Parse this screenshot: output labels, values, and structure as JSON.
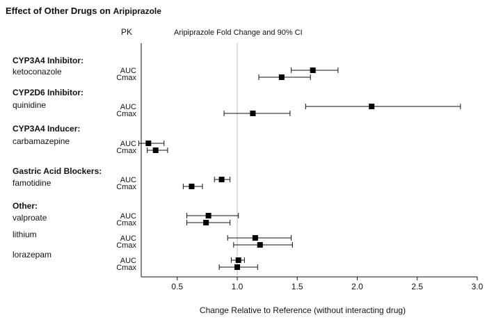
{
  "title": "Effect of Other Drugs on",
  "title_drug": "Aripiprazole",
  "pk_header": "PK",
  "panel_header": "Aripiprazole Fold Change and 90% CI",
  "chart_data": {
    "type": "forest",
    "xlabel": "Change Relative to Reference (without interacting drug)",
    "xlim": [
      0.2,
      3.0
    ],
    "xticks": [
      "0.5",
      "1.0",
      "1.5",
      "2.0",
      "2.5",
      "3.0"
    ],
    "reference_line": 1.0,
    "groups": [
      {
        "category": "CYP3A4 Inhibitor:",
        "drug": "ketoconazole",
        "measures": [
          {
            "pk": "AUC",
            "estimate": 1.63,
            "lo": 1.45,
            "hi": 1.84
          },
          {
            "pk": "Cmax",
            "estimate": 1.37,
            "lo": 1.18,
            "hi": 1.61
          }
        ]
      },
      {
        "category": "CYP2D6 Inhibitor:",
        "drug": "quinidine",
        "measures": [
          {
            "pk": "AUC",
            "estimate": 2.12,
            "lo": 1.57,
            "hi": 2.86
          },
          {
            "pk": "Cmax",
            "estimate": 1.13,
            "lo": 0.89,
            "hi": 1.44
          }
        ]
      },
      {
        "category": "CYP3A4 Inducer:",
        "drug": "carbamazepine",
        "measures": [
          {
            "pk": "AUC",
            "estimate": 0.26,
            "lo": 0.18,
            "hi": 0.39
          },
          {
            "pk": "Cmax",
            "estimate": 0.32,
            "lo": 0.25,
            "hi": 0.42
          }
        ]
      },
      {
        "category": "Gastric Acid Blockers:",
        "drug": "famotidine",
        "measures": [
          {
            "pk": "AUC",
            "estimate": 0.87,
            "lo": 0.81,
            "hi": 0.94
          },
          {
            "pk": "Cmax",
            "estimate": 0.62,
            "lo": 0.55,
            "hi": 0.71
          }
        ]
      },
      {
        "category": "Other:",
        "drug": "valproate",
        "measures": [
          {
            "pk": "AUC",
            "estimate": 0.76,
            "lo": 0.58,
            "hi": 1.01
          },
          {
            "pk": "Cmax",
            "estimate": 0.74,
            "lo": 0.58,
            "hi": 0.94
          }
        ]
      },
      {
        "category": "",
        "drug": "lithium",
        "measures": [
          {
            "pk": "AUC",
            "estimate": 1.15,
            "lo": 0.92,
            "hi": 1.45
          },
          {
            "pk": "Cmax",
            "estimate": 1.19,
            "lo": 0.97,
            "hi": 1.46
          }
        ]
      },
      {
        "category": "",
        "drug": "lorazepam",
        "measures": [
          {
            "pk": "AUC",
            "estimate": 1.01,
            "lo": 0.95,
            "hi": 1.06
          },
          {
            "pk": "Cmax",
            "estimate": 1.0,
            "lo": 0.85,
            "hi": 1.17
          }
        ]
      }
    ]
  }
}
